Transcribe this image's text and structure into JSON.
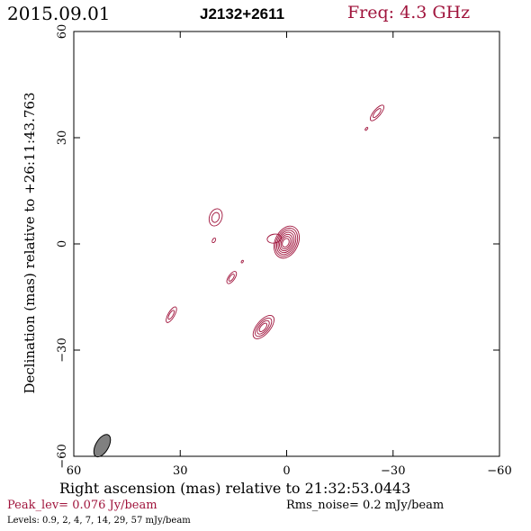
{
  "header": {
    "date": "2015.09.01",
    "source": "J2132+2611",
    "frequency": "Freq: 4.3 GHz"
  },
  "footer": {
    "peak": "Peak_lev=  0.076 Jy/beam",
    "rms": "Rms_noise=  0.2 mJy/beam",
    "levels": "Levels: 0.9,   2,   4,   7,  14,  29,  57 mJy/beam"
  },
  "colors": {
    "contour": "#a0143c",
    "beam": "#808080",
    "axes": "#000000"
  },
  "chart_data": {
    "type": "contour",
    "title": "",
    "xlabel": "Right ascension (mas) relative to 21:32:53.0443",
    "ylabel": "Declination (mas) relative to +26:11:43.763",
    "xlim": [
      60,
      -60
    ],
    "ylim": [
      -60,
      60
    ],
    "x_ticks": [
      "60",
      "30",
      "0",
      "−30",
      "−60"
    ],
    "y_ticks": [
      "−60",
      "−30",
      "0",
      "30",
      "60"
    ],
    "x_tick_values": [
      60,
      30,
      0,
      -30,
      -60
    ],
    "y_tick_values": [
      -60,
      -30,
      0,
      30,
      60
    ],
    "grid": false,
    "beam": {
      "x": 52,
      "y": -57,
      "major": 3.5,
      "minor": 1.8,
      "pa": 30
    },
    "components": [
      {
        "name": "core",
        "x": 0,
        "y": 0.5,
        "levels": 7,
        "major": 9.5,
        "minor": 6.5,
        "pa": 25
      },
      {
        "name": "core-extension",
        "x": 3.5,
        "y": 1.5,
        "levels": 1,
        "major": 4,
        "minor": 2.5,
        "pa": 80
      },
      {
        "name": "knot",
        "x": 20,
        "y": 7.5,
        "levels": 2,
        "major": 5,
        "minor": 3.5,
        "pa": 20
      },
      {
        "name": "knot",
        "x": 20.5,
        "y": 1,
        "levels": 1,
        "major": 1.4,
        "minor": 0.8,
        "pa": 30
      },
      {
        "name": "knot",
        "x": 12.5,
        "y": -5,
        "levels": 1,
        "major": 0.8,
        "minor": 0.5,
        "pa": 30
      },
      {
        "name": "knot",
        "x": 15.5,
        "y": -9.5,
        "levels": 2,
        "major": 4,
        "minor": 1.8,
        "pa": 35
      },
      {
        "name": "knot",
        "x": 32.5,
        "y": -20,
        "levels": 2,
        "major": 5,
        "minor": 1.8,
        "pa": 30
      },
      {
        "name": "knot",
        "x": -25.5,
        "y": 37,
        "levels": 2,
        "major": 5.5,
        "minor": 2,
        "pa": 40
      },
      {
        "name": "knot",
        "x": -22.5,
        "y": 32.5,
        "levels": 1,
        "major": 1,
        "minor": 0.5,
        "pa": 40
      },
      {
        "name": "knot",
        "x": 6.5,
        "y": -23.5,
        "levels": 4,
        "major": 8,
        "minor": 3.8,
        "pa": 40
      }
    ]
  }
}
